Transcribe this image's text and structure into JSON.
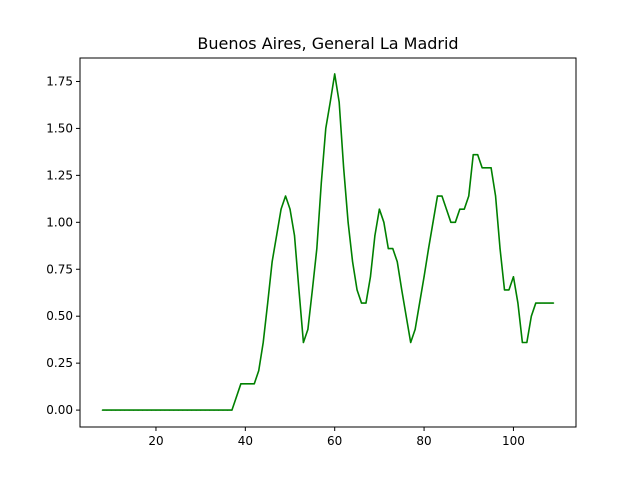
{
  "chart_data": {
    "type": "line",
    "title": "Buenos Aires, General La Madrid",
    "xlabel": "",
    "ylabel": "",
    "xlim": [
      3,
      114
    ],
    "ylim": [
      -0.09,
      1.875
    ],
    "grid": false,
    "x_ticks": [
      {
        "value": 20,
        "label": "20"
      },
      {
        "value": 40,
        "label": "40"
      },
      {
        "value": 60,
        "label": "60"
      },
      {
        "value": 80,
        "label": "80"
      },
      {
        "value": 100,
        "label": "100"
      }
    ],
    "y_ticks": [
      {
        "value": 0.0,
        "label": "0.00"
      },
      {
        "value": 0.25,
        "label": "0.25"
      },
      {
        "value": 0.5,
        "label": "0.50"
      },
      {
        "value": 0.75,
        "label": "0.75"
      },
      {
        "value": 1.0,
        "label": "1.00"
      },
      {
        "value": 1.25,
        "label": "1.25"
      },
      {
        "value": 1.5,
        "label": "1.50"
      },
      {
        "value": 1.75,
        "label": "1.75"
      }
    ],
    "series": [
      {
        "color": "#008000",
        "x": [
          8,
          9,
          10,
          11,
          12,
          13,
          14,
          15,
          16,
          17,
          18,
          19,
          20,
          21,
          22,
          23,
          24,
          25,
          26,
          27,
          28,
          29,
          30,
          31,
          32,
          33,
          34,
          35,
          36,
          37,
          38,
          39,
          40,
          41,
          42,
          43,
          44,
          45,
          46,
          47,
          48,
          49,
          50,
          51,
          52,
          53,
          54,
          55,
          56,
          57,
          58,
          59,
          60,
          61,
          62,
          63,
          64,
          65,
          66,
          67,
          68,
          69,
          70,
          71,
          72,
          73,
          74,
          75,
          76,
          77,
          78,
          79,
          80,
          81,
          82,
          83,
          84,
          85,
          86,
          87,
          88,
          89,
          90,
          91,
          92,
          93,
          94,
          95,
          96,
          97,
          98,
          99,
          100,
          101,
          102,
          103,
          104,
          105,
          106,
          107,
          108,
          109
        ],
        "y": [
          0,
          0,
          0,
          0,
          0,
          0,
          0,
          0,
          0,
          0,
          0,
          0,
          0,
          0,
          0,
          0,
          0,
          0,
          0,
          0,
          0,
          0,
          0,
          0,
          0,
          0,
          0,
          0,
          0,
          0,
          0.07,
          0.14,
          0.14,
          0.14,
          0.14,
          0.21,
          0.36,
          0.57,
          0.79,
          0.93,
          1.07,
          1.14,
          1.07,
          0.93,
          0.64,
          0.36,
          0.43,
          0.64,
          0.86,
          1.21,
          1.5,
          1.64,
          1.79,
          1.64,
          1.29,
          1.0,
          0.79,
          0.64,
          0.57,
          0.57,
          0.71,
          0.93,
          1.07,
          1.0,
          0.86,
          0.86,
          0.79,
          0.64,
          0.5,
          0.36,
          0.43,
          0.57,
          0.71,
          0.86,
          1.0,
          1.14,
          1.14,
          1.07,
          1.0,
          1.0,
          1.07,
          1.07,
          1.14,
          1.36,
          1.36,
          1.29,
          1.29,
          1.29,
          1.14,
          0.86,
          0.64,
          0.64,
          0.71,
          0.57,
          0.36,
          0.36,
          0.5,
          0.57,
          0.57,
          0.57,
          0.57,
          0.57
        ]
      }
    ]
  }
}
